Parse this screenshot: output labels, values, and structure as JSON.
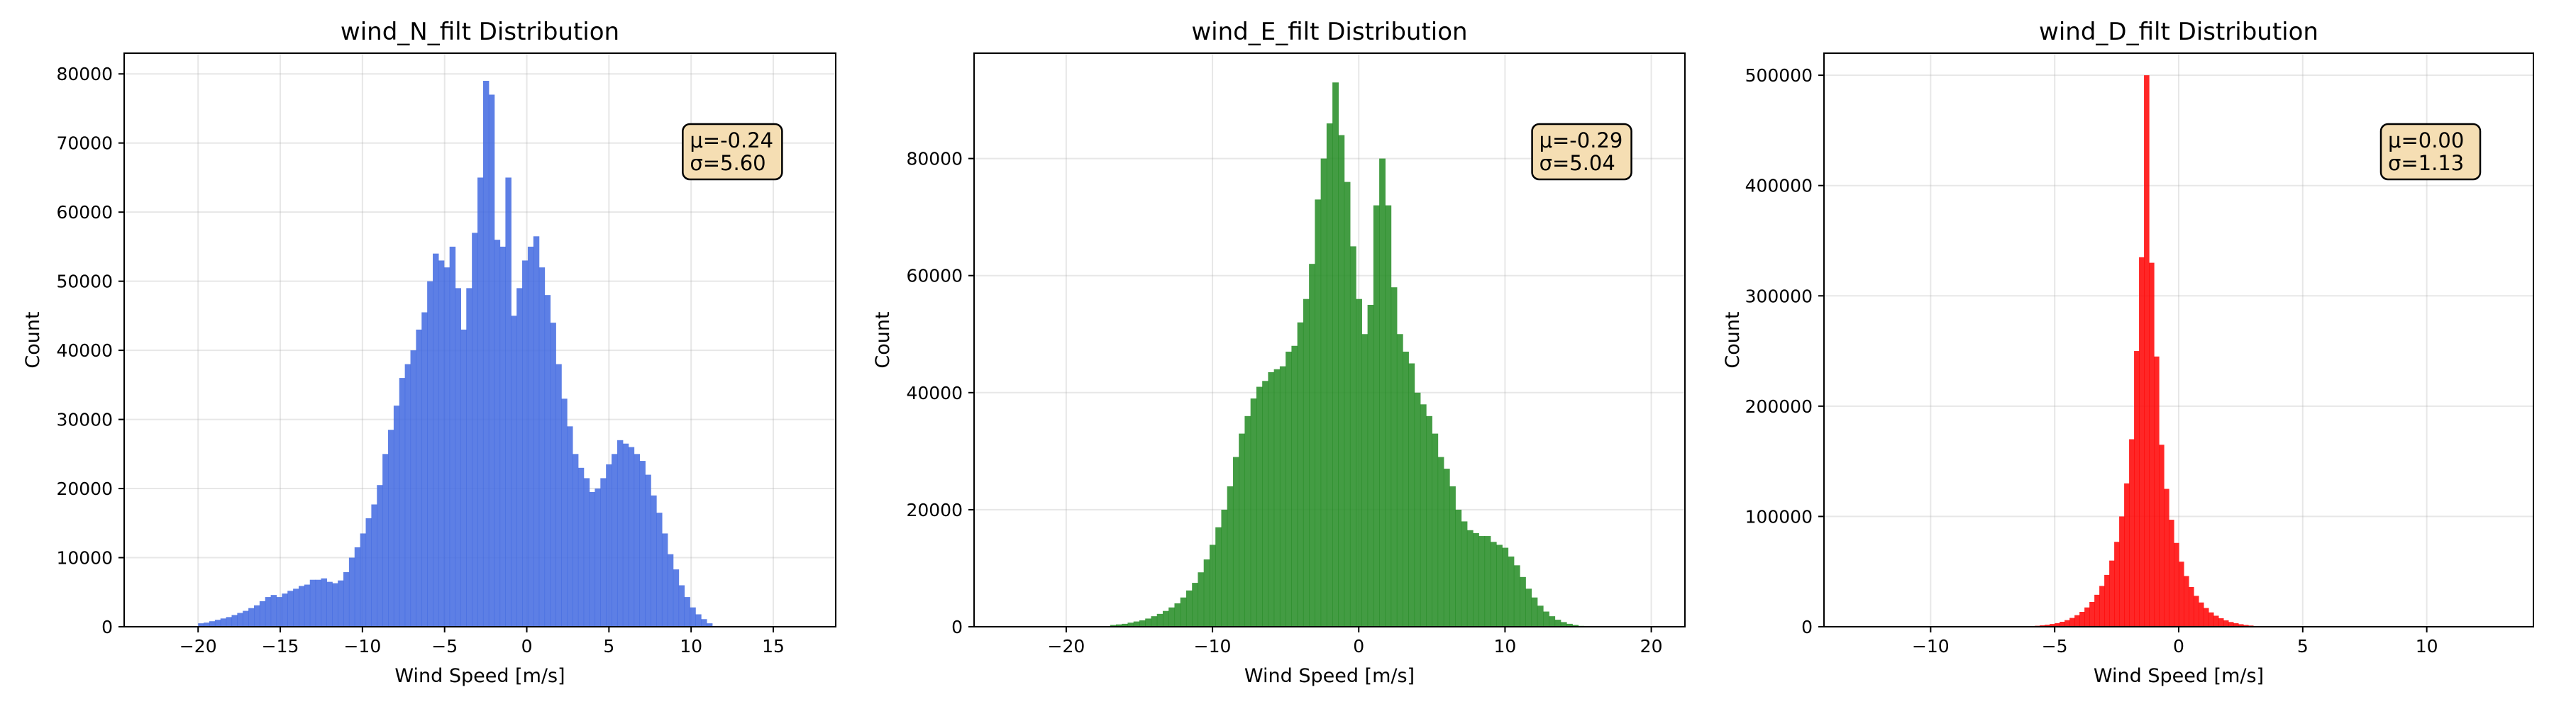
{
  "chart_data": [
    {
      "type": "bar",
      "title": "wind_N_filt Distribution",
      "xlabel": "Wind Speed [m/s]",
      "ylabel": "Count",
      "color": "#4169E1",
      "xlim": [
        -24.5,
        18.8
      ],
      "ylim": [
        0,
        83000
      ],
      "xticks": [
        -20,
        -15,
        -10,
        -5,
        0,
        5,
        10,
        15
      ],
      "yticks": [
        0,
        10000,
        20000,
        30000,
        40000,
        50000,
        60000,
        70000,
        80000
      ],
      "stats": [
        "μ=-0.24",
        "σ=5.60"
      ],
      "bin_start": -20.0,
      "bin_width": 0.34,
      "values": [
        500,
        600,
        800,
        1000,
        1200,
        1400,
        1700,
        2000,
        2300,
        2700,
        3100,
        3700,
        4300,
        4600,
        4300,
        4800,
        5200,
        5500,
        5900,
        6100,
        6800,
        6800,
        7000,
        6500,
        6300,
        6700,
        7900,
        10000,
        11500,
        13500,
        15700,
        17700,
        20500,
        25000,
        28500,
        32000,
        36000,
        38000,
        40000,
        43000,
        45500,
        50000,
        54000,
        53000,
        52000,
        55000,
        49000,
        43000,
        49000,
        57000,
        65000,
        79000,
        77000,
        56000,
        55000,
        65000,
        45000,
        49000,
        53000,
        55000,
        56500,
        52000,
        48000,
        44000,
        38000,
        33000,
        29000,
        25000,
        23000,
        21500,
        19500,
        20000,
        21500,
        23500,
        25000,
        27000,
        26500,
        26000,
        25000,
        24000,
        22000,
        19000,
        16500,
        13500,
        10500,
        8300,
        6000,
        4300,
        2800,
        1800,
        1100,
        500
      ]
    },
    {
      "type": "bar",
      "title": "wind_E_filt Distribution",
      "xlabel": "Wind Speed [m/s]",
      "ylabel": "Count",
      "color": "#228B22",
      "xlim": [
        -26.3,
        22.3
      ],
      "ylim": [
        0,
        98000
      ],
      "xticks": [
        -20,
        -10,
        0,
        10,
        20
      ],
      "yticks": [
        0,
        20000,
        40000,
        60000,
        80000
      ],
      "stats": [
        "μ=-0.29",
        "σ=5.04"
      ],
      "bin_start": -17.0,
      "bin_width": 0.4,
      "values": [
        300,
        400,
        500,
        700,
        900,
        1100,
        1400,
        1800,
        2200,
        2700,
        3300,
        4000,
        5000,
        6200,
        7500,
        9300,
        11500,
        14000,
        17000,
        20000,
        24000,
        29000,
        33000,
        36000,
        39000,
        41000,
        42000,
        43500,
        44000,
        44500,
        47000,
        48000,
        52000,
        56000,
        62000,
        73000,
        80000,
        86000,
        93000,
        84000,
        76000,
        65000,
        56000,
        50000,
        55000,
        72000,
        80000,
        72000,
        58000,
        50000,
        47000,
        45000,
        40000,
        38000,
        36000,
        33000,
        29000,
        27000,
        24000,
        20000,
        18000,
        16500,
        16000,
        15500,
        15500,
        14500,
        14000,
        13500,
        12000,
        10500,
        8500,
        6500,
        5000,
        3600,
        2600,
        1800,
        1200,
        800,
        500,
        300,
        150
      ]
    },
    {
      "type": "bar",
      "title": "wind_D_filt Distribution",
      "xlabel": "Wind Speed [m/s]",
      "ylabel": "Count",
      "color": "#FF0000",
      "xlim": [
        -14.3,
        14.3
      ],
      "ylim": [
        0,
        520000
      ],
      "xticks": [
        -10,
        -5,
        0,
        5,
        10
      ],
      "yticks": [
        0,
        100000,
        200000,
        300000,
        400000,
        500000
      ],
      "stats": [
        "μ=0.00",
        "σ=1.13"
      ],
      "bin_start": -6.0,
      "bin_width": 0.2,
      "values": [
        600,
        900,
        1300,
        1800,
        2500,
        3300,
        4500,
        6000,
        8000,
        10500,
        13500,
        17500,
        22500,
        29000,
        37000,
        47000,
        60000,
        77000,
        100000,
        130000,
        170000,
        250000,
        335000,
        500000,
        330000,
        245000,
        165000,
        125000,
        97000,
        76000,
        59000,
        46000,
        36000,
        28000,
        22000,
        17000,
        13000,
        10000,
        7700,
        5800,
        4300,
        3200,
        2300,
        1600,
        1100,
        700,
        400
      ]
    }
  ]
}
